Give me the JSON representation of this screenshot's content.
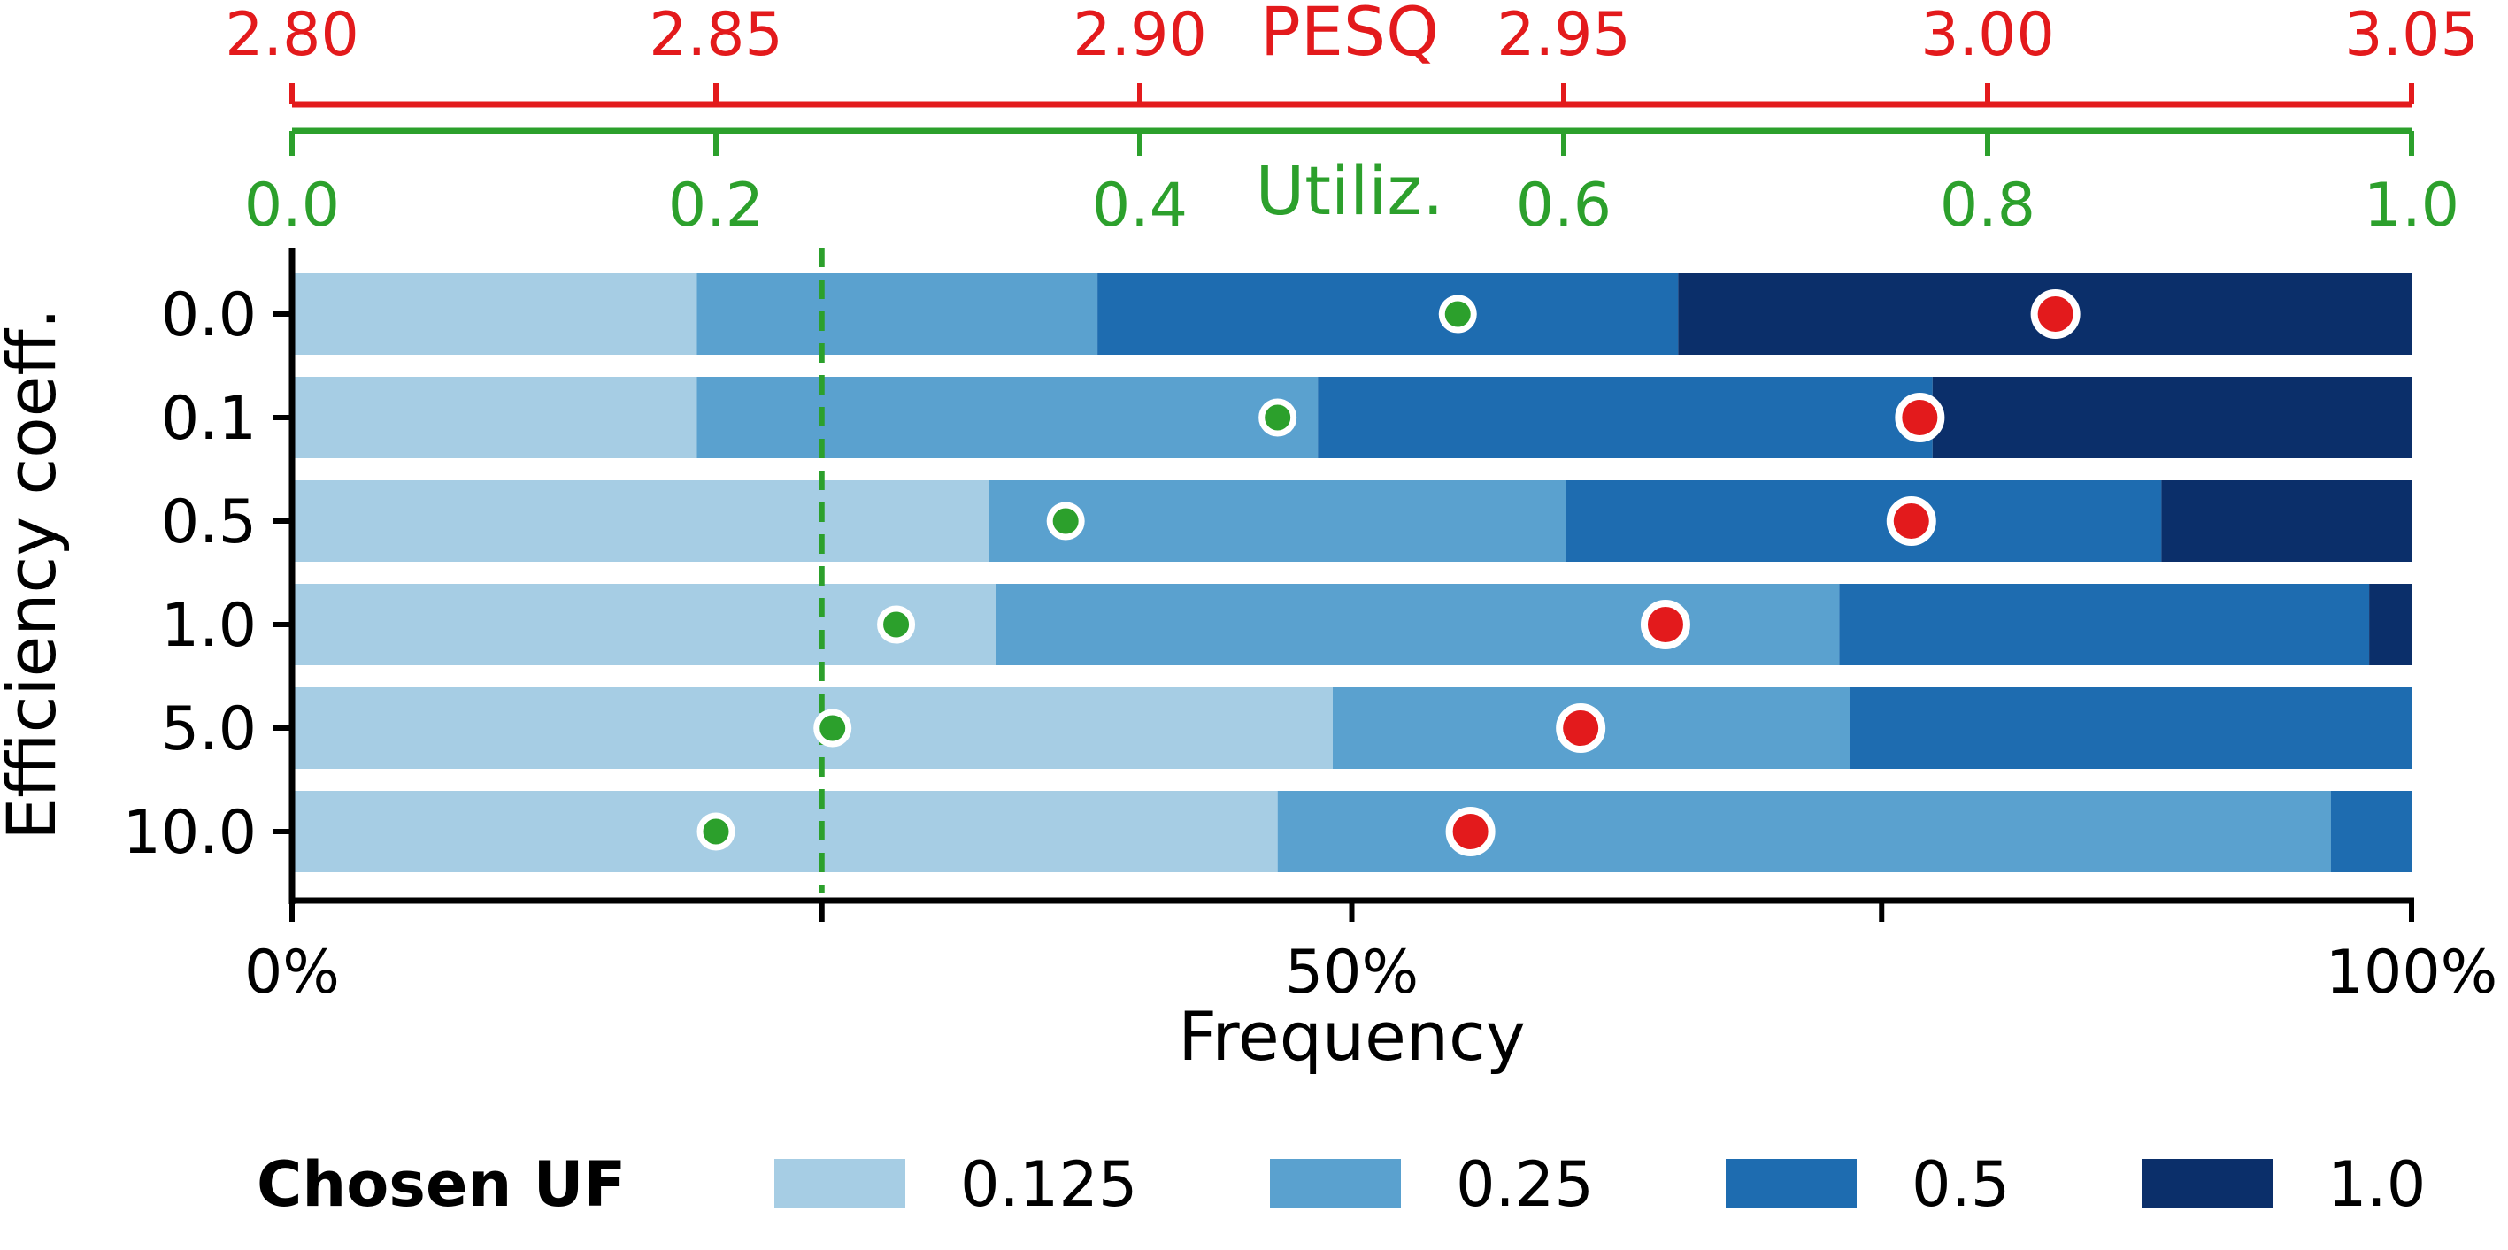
{
  "chart_data": {
    "type": "bar",
    "orientation": "horizontal",
    "stacked": true,
    "xlabel": "Frequency",
    "ylabel": "Efficiency coeff.",
    "xlim": [
      0,
      100
    ],
    "x_ticks": [
      0,
      25,
      50,
      75,
      100
    ],
    "x_tick_labels": [
      "0%",
      "",
      "50%",
      "",
      "100%"
    ],
    "categories": [
      "0.0",
      "0.1",
      "0.5",
      "1.0",
      "5.0",
      "10.0"
    ],
    "series": [
      {
        "name": "0.125",
        "color": "#a6cde4",
        "values": [
          19.1,
          19.1,
          32.9,
          33.2,
          49.1,
          46.5
        ]
      },
      {
        "name": "0.25",
        "color": "#5aa1cf",
        "values": [
          18.9,
          29.3,
          27.2,
          39.8,
          24.4,
          49.7
        ]
      },
      {
        "name": "0.5",
        "color": "#1e6cb0",
        "values": [
          27.4,
          29.0,
          28.1,
          25.0,
          26.5,
          3.8
        ]
      },
      {
        "name": "1.0",
        "color": "#0b2f6a",
        "values": [
          34.6,
          22.6,
          11.8,
          2.0,
          0.0,
          0.0
        ]
      }
    ],
    "legend": {
      "title": "Chosen UF",
      "placement": "bottom",
      "entries": [
        "0.125",
        "0.25",
        "0.5",
        "1.0"
      ]
    },
    "pesq_axis": {
      "label": "PESQ",
      "color": "#e31a1c",
      "range": [
        2.8,
        3.05
      ],
      "ticks": [
        "2.80",
        "2.85",
        "2.90",
        "2.95",
        "3.00",
        "3.05"
      ],
      "values": [
        3.008,
        2.992,
        2.991,
        2.962,
        2.952,
        2.939
      ]
    },
    "utilization_axis": {
      "label": "Utiliz.",
      "color": "#2ca02c",
      "range": [
        0.0,
        1.0
      ],
      "ticks": [
        "0.0",
        "0.2",
        "0.4",
        "0.6",
        "0.8",
        "1.0"
      ],
      "values": [
        0.55,
        0.465,
        0.365,
        0.285,
        0.255,
        0.2
      ]
    },
    "reference_line": {
      "x": 25,
      "style": "dashed",
      "color": "#2ca02c"
    }
  }
}
